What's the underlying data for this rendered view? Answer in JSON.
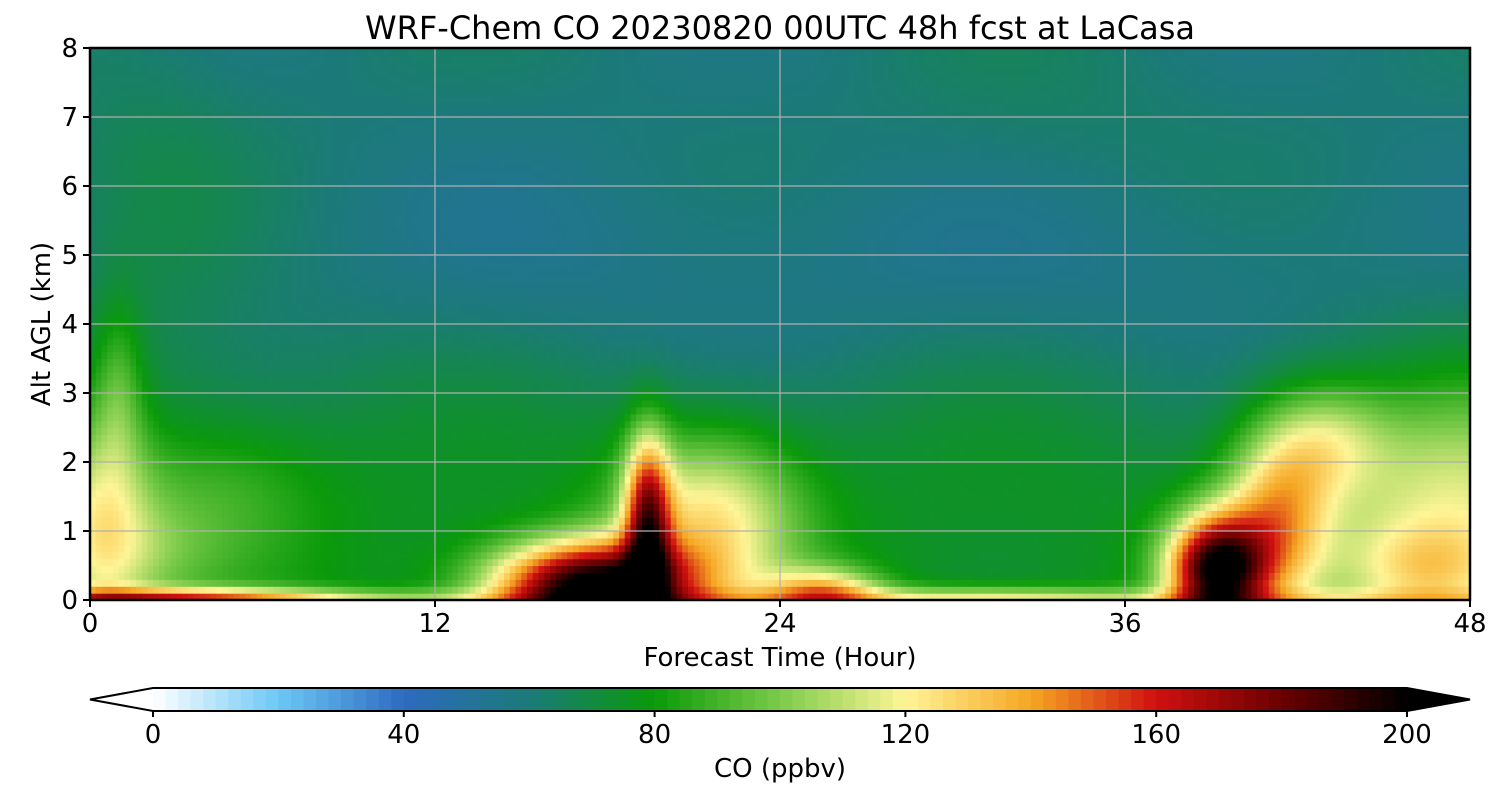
{
  "chart_data": {
    "type": "heatmap",
    "title": "WRF-Chem CO  20230820 00UTC 48h fcst at LaCasa",
    "xlabel": "Forecast Time (Hour)",
    "ylabel": "Alt AGL (km)",
    "xlim": [
      0,
      48
    ],
    "ylim": [
      0,
      8
    ],
    "x_ticks": [
      0,
      12,
      24,
      36,
      48
    ],
    "y_ticks": [
      0,
      1,
      2,
      3,
      4,
      5,
      6,
      7,
      8
    ],
    "grid": true,
    "x": [
      0,
      1,
      2,
      3,
      4,
      5,
      6,
      7,
      8,
      9,
      10,
      11,
      12,
      13,
      14,
      15,
      16,
      17,
      18,
      19,
      20,
      21,
      22,
      23,
      24,
      25,
      26,
      27,
      28,
      29,
      30,
      31,
      32,
      33,
      34,
      35,
      36,
      37,
      38,
      39,
      40,
      41,
      42,
      43,
      44,
      45,
      46,
      47,
      48
    ],
    "y": [
      0,
      0.25,
      0.5,
      0.75,
      1,
      1.25,
      1.5,
      1.75,
      2,
      2.25,
      2.5,
      2.75,
      3,
      3.25,
      3.5,
      3.75,
      4,
      4.25,
      4.5,
      4.75,
      5,
      5.25,
      5.5,
      5.75,
      6,
      6.25,
      6.5,
      6.75,
      7,
      7.25,
      7.5,
      7.75,
      8
    ],
    "z_units": "ppbv",
    "colorbar": {
      "label": "CO  (ppbv)",
      "min": 0,
      "max": 200,
      "ticks": [
        0,
        40,
        80,
        120,
        160,
        200
      ],
      "extend": "both",
      "orientation": "horizontal",
      "colors": [
        "#ffffff",
        "#6cc8f5",
        "#2e6ac0",
        "#1b7a78",
        "#0a9a0a",
        "#7ccb4a",
        "#fff597",
        "#f5a623",
        "#d01010",
        "#6b0000",
        "#000000"
      ]
    }
  }
}
